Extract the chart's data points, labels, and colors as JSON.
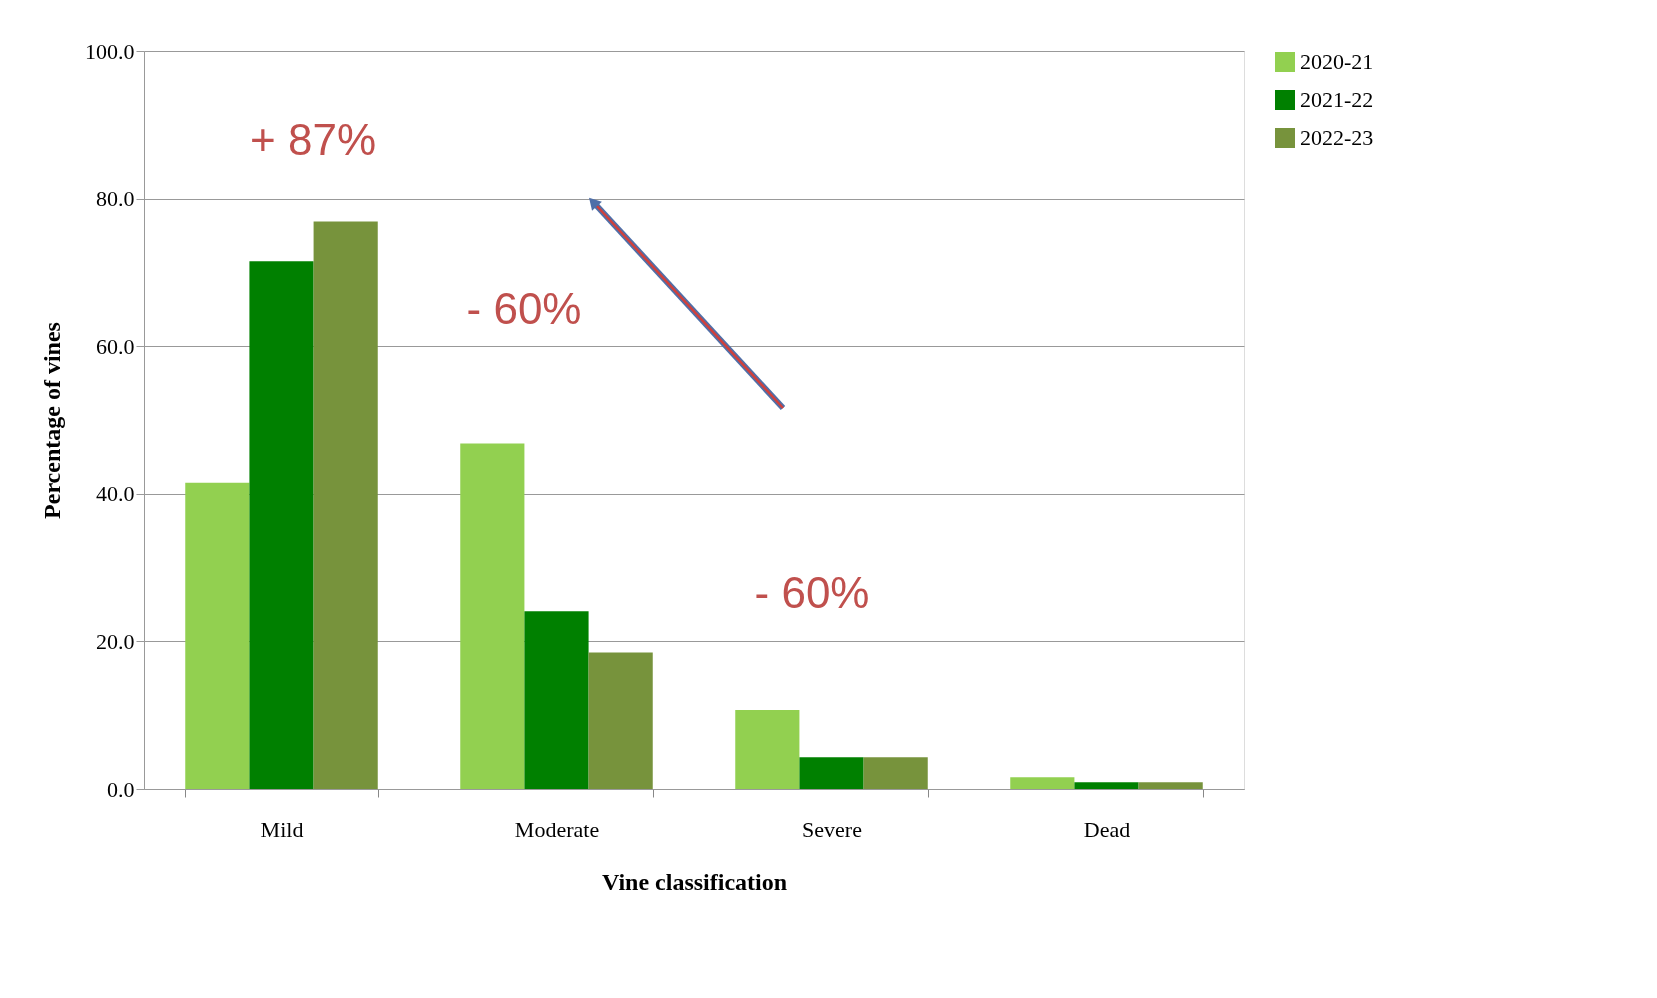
{
  "chart_data": {
    "type": "bar",
    "xlabel": "Vine classification",
    "ylabel": "Percentage of vines",
    "categories": [
      "Mild",
      "Moderate",
      "Severe",
      "Dead"
    ],
    "series": [
      {
        "name": "2020-21",
        "color": "#92d050",
        "values": [
          41.5,
          46.8,
          10.7,
          1.6
        ]
      },
      {
        "name": "2021-22",
        "color": "#008000",
        "values": [
          71.5,
          24.1,
          4.3,
          0.9
        ]
      },
      {
        "name": "2022-23",
        "color": "#77933c",
        "values": [
          76.9,
          18.5,
          4.3,
          0.9
        ]
      }
    ],
    "ylim": [
      0,
      100
    ],
    "yticks": [
      {
        "value": 0,
        "label": "0.0"
      },
      {
        "value": 20,
        "label": "20.0"
      },
      {
        "value": 40,
        "label": "40.0"
      },
      {
        "value": 60,
        "label": "60.0"
      },
      {
        "value": 80,
        "label": "80.0"
      },
      {
        "value": 100,
        "label": "100.0"
      }
    ],
    "annotations": [
      "+ 87%",
      "- 60%",
      "- 60%"
    ],
    "grid": "y",
    "legend": "right"
  }
}
